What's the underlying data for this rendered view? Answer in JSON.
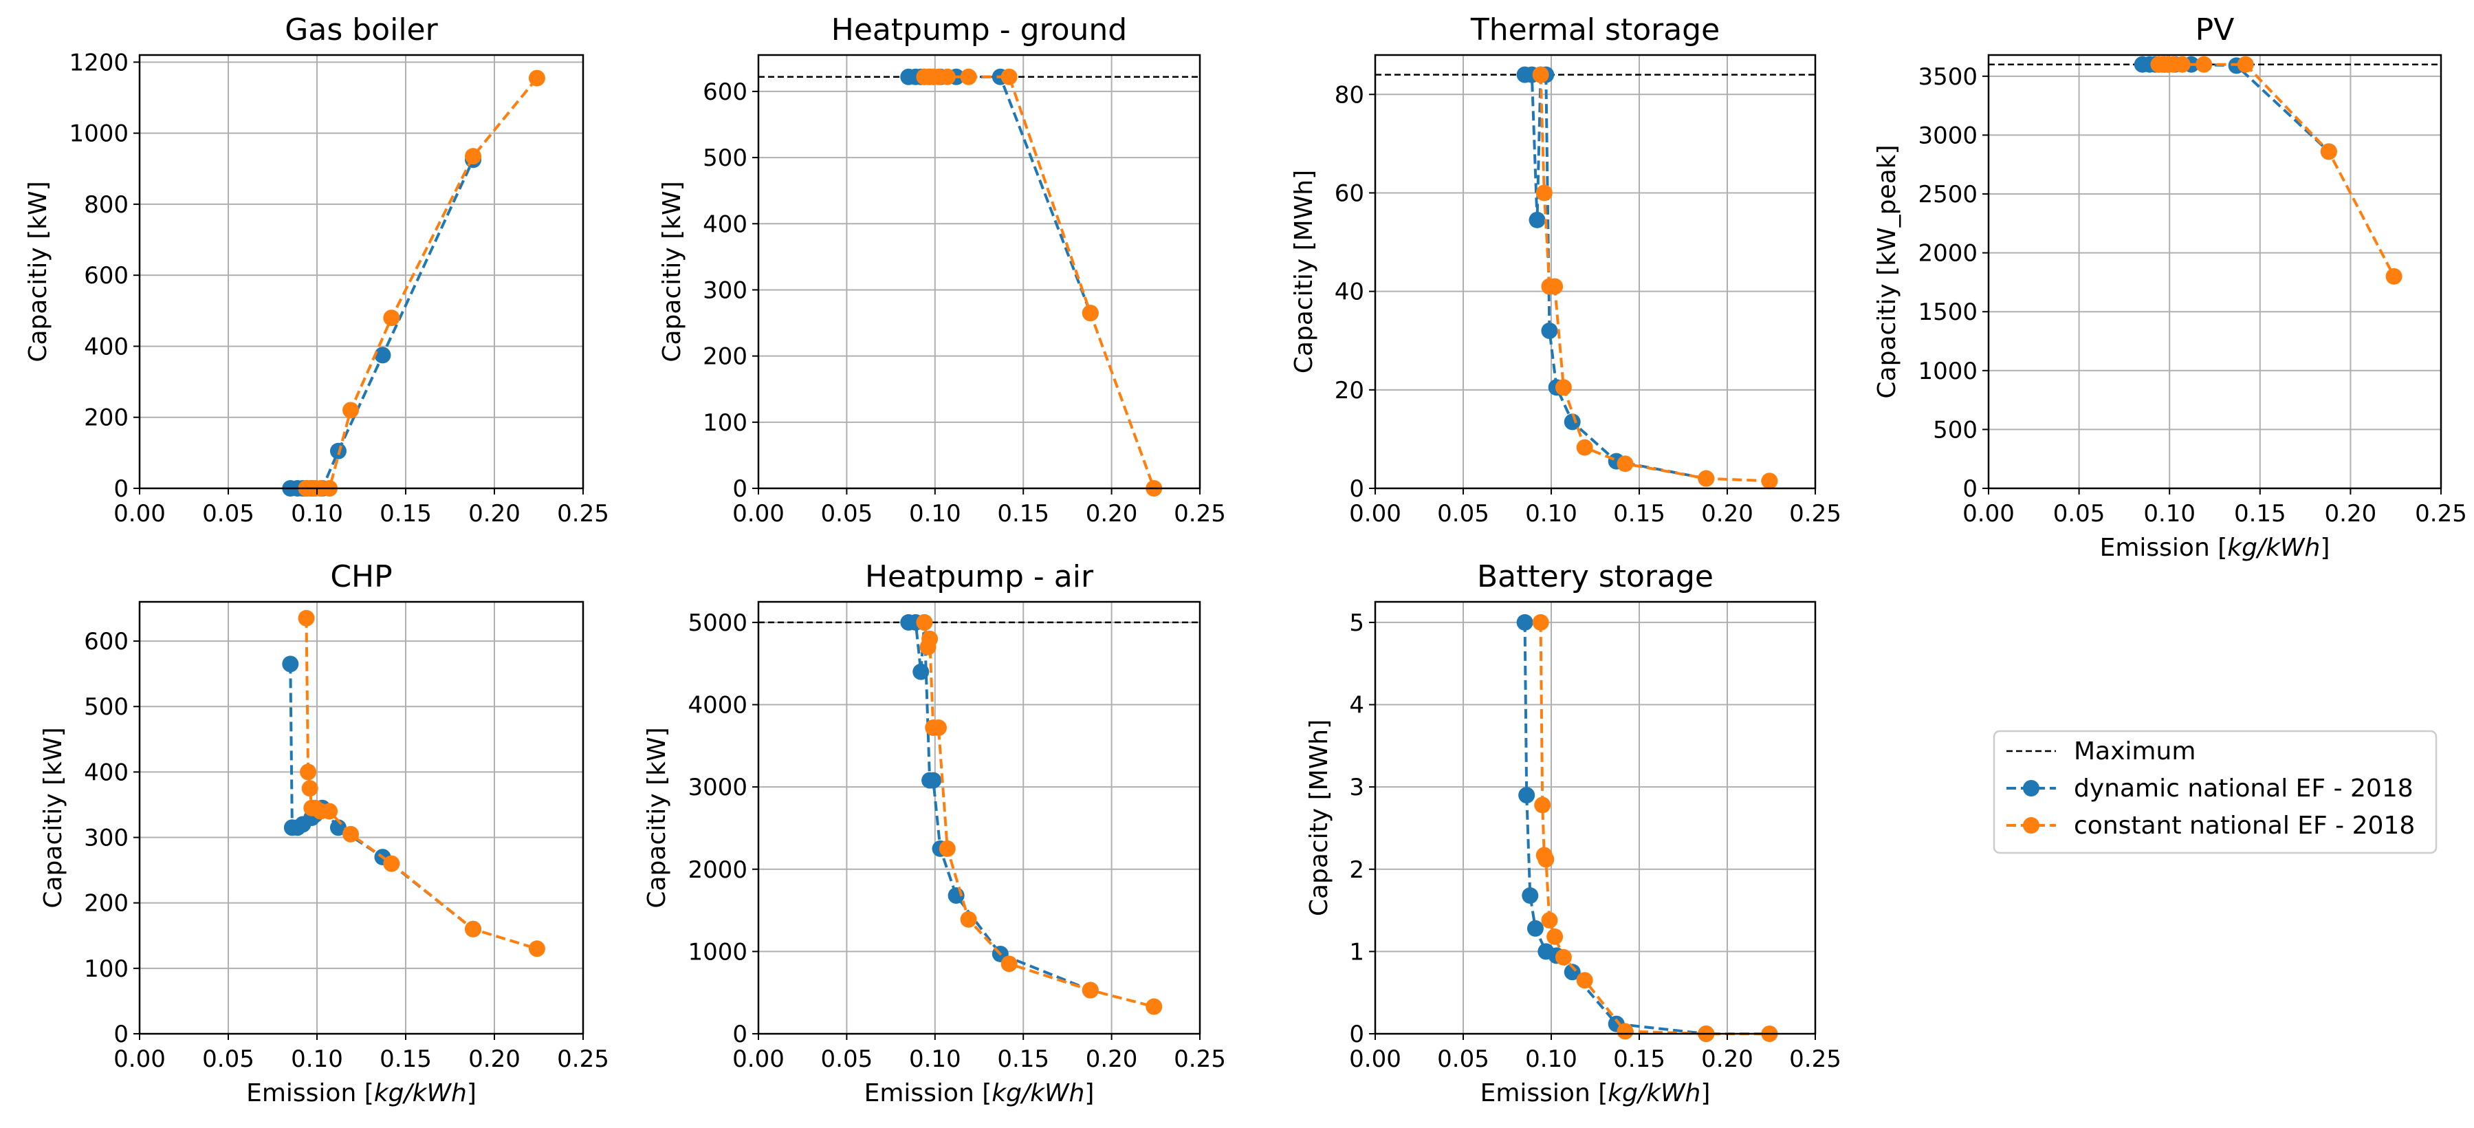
{
  "colors": {
    "dynamic": "#1f77b4",
    "constant": "#ff7f0e",
    "maximum": "#000000",
    "grid": "#b0b0b0"
  },
  "legend": {
    "maximum_label": "Maximum",
    "dynamic_label": "dynamic national EF - 2018",
    "constant_label": "constant national EF - 2018"
  },
  "chart_data": [
    {
      "type": "line",
      "title": "Gas boiler",
      "xlabel": "",
      "ylabel": "Capacitiy [kW]",
      "xlim": [
        0,
        0.25
      ],
      "ylim": [
        0,
        1220
      ],
      "xticks": [
        0,
        0.05,
        0.1,
        0.15,
        0.2,
        0.25
      ],
      "xtick_labels": [
        "0.00",
        "0.05",
        "0.10",
        "0.15",
        "0.20",
        "0.25"
      ],
      "yticks": [
        0,
        200,
        400,
        600,
        800,
        1000,
        1200
      ],
      "ytick_labels": [
        "0",
        "200",
        "400",
        "600",
        "800",
        "1000",
        "1200"
      ],
      "maximum": null,
      "series": [
        {
          "name": "dynamic national EF - 2018",
          "x": [
            0.085,
            0.089,
            0.092,
            0.094,
            0.097,
            0.099,
            0.103,
            0.112,
            0.137,
            0.188
          ],
          "y": [
            0,
            0,
            0,
            0,
            0,
            0,
            0,
            105,
            375,
            925
          ]
        },
        {
          "name": "constant national EF - 2018",
          "x": [
            0.094,
            0.096,
            0.099,
            0.102,
            0.107,
            0.119,
            0.142,
            0.188,
            0.224
          ],
          "y": [
            0,
            0,
            0,
            0,
            0,
            220,
            480,
            935,
            1155
          ]
        }
      ]
    },
    {
      "type": "line",
      "title": "Heatpump - ground",
      "xlabel": "",
      "ylabel": "Capacitiy [kW]",
      "xlim": [
        0,
        0.25
      ],
      "ylim": [
        0,
        655
      ],
      "xticks": [
        0,
        0.05,
        0.1,
        0.15,
        0.2,
        0.25
      ],
      "xtick_labels": [
        "0.00",
        "0.05",
        "0.10",
        "0.15",
        "0.20",
        "0.25"
      ],
      "yticks": [
        0,
        100,
        200,
        300,
        400,
        500,
        600
      ],
      "ytick_labels": [
        "0",
        "100",
        "200",
        "300",
        "400",
        "500",
        "600"
      ],
      "maximum": 622,
      "series": [
        {
          "name": "dynamic national EF - 2018",
          "x": [
            0.085,
            0.089,
            0.092,
            0.094,
            0.097,
            0.099,
            0.103,
            0.112,
            0.137,
            0.188
          ],
          "y": [
            622,
            622,
            622,
            622,
            622,
            622,
            622,
            622,
            622,
            265
          ]
        },
        {
          "name": "constant national EF - 2018",
          "x": [
            0.094,
            0.096,
            0.099,
            0.102,
            0.107,
            0.119,
            0.142,
            0.188,
            0.224
          ],
          "y": [
            622,
            622,
            622,
            622,
            622,
            622,
            622,
            265,
            0
          ]
        }
      ]
    },
    {
      "type": "line",
      "title": "Thermal storage",
      "xlabel": "",
      "ylabel": "Capacitiy [MWh]",
      "xlim": [
        0,
        0.25
      ],
      "ylim": [
        0,
        88
      ],
      "xticks": [
        0,
        0.05,
        0.1,
        0.15,
        0.2,
        0.25
      ],
      "xtick_labels": [
        "0.00",
        "0.05",
        "0.10",
        "0.15",
        "0.20",
        "0.25"
      ],
      "yticks": [
        0,
        20,
        40,
        60,
        80
      ],
      "ytick_labels": [
        "0",
        "20",
        "40",
        "60",
        "80"
      ],
      "maximum": 84,
      "series": [
        {
          "name": "dynamic national EF - 2018",
          "x": [
            0.085,
            0.089,
            0.092,
            0.094,
            0.097,
            0.099,
            0.103,
            0.112,
            0.137,
            0.188
          ],
          "y": [
            84,
            84,
            54.5,
            84,
            84,
            32,
            20.5,
            13.5,
            5.5,
            2.0
          ]
        },
        {
          "name": "constant national EF - 2018",
          "x": [
            0.094,
            0.096,
            0.099,
            0.102,
            0.107,
            0.119,
            0.142,
            0.188,
            0.224
          ],
          "y": [
            84,
            60,
            41,
            41,
            20.5,
            8.3,
            5.0,
            2.0,
            1.5
          ]
        }
      ]
    },
    {
      "type": "line",
      "title": "PV",
      "xlabel": "Emission [kg/kWh]",
      "ylabel": "Capacitiy [kW_peak]",
      "xlim": [
        0,
        0.25
      ],
      "ylim": [
        0,
        3680
      ],
      "xticks": [
        0,
        0.05,
        0.1,
        0.15,
        0.2,
        0.25
      ],
      "xtick_labels": [
        "0.00",
        "0.05",
        "0.10",
        "0.15",
        "0.20",
        "0.25"
      ],
      "yticks": [
        0,
        500,
        1000,
        1500,
        2000,
        2500,
        3000,
        3500
      ],
      "ytick_labels": [
        "0",
        "500",
        "1000",
        "1500",
        "2000",
        "2500",
        "3000",
        "3500"
      ],
      "maximum": 3600,
      "series": [
        {
          "name": "dynamic national EF - 2018",
          "x": [
            0.085,
            0.089,
            0.092,
            0.094,
            0.097,
            0.099,
            0.103,
            0.112,
            0.137,
            0.188
          ],
          "y": [
            3600,
            3600,
            3600,
            3600,
            3600,
            3600,
            3600,
            3600,
            3590,
            2860
          ]
        },
        {
          "name": "constant national EF - 2018",
          "x": [
            0.094,
            0.096,
            0.099,
            0.102,
            0.107,
            0.119,
            0.142,
            0.188,
            0.224
          ],
          "y": [
            3600,
            3600,
            3600,
            3600,
            3600,
            3600,
            3600,
            2860,
            1800
          ]
        }
      ]
    },
    {
      "type": "line",
      "title": "CHP",
      "xlabel": "Emission [kg/kWh]",
      "ylabel": "Capacitiy [kW]",
      "xlim": [
        0,
        0.25
      ],
      "ylim": [
        0,
        660
      ],
      "xticks": [
        0,
        0.05,
        0.1,
        0.15,
        0.2,
        0.25
      ],
      "xtick_labels": [
        "0.00",
        "0.05",
        "0.10",
        "0.15",
        "0.20",
        "0.25"
      ],
      "yticks": [
        0,
        100,
        200,
        300,
        400,
        500,
        600
      ],
      "ytick_labels": [
        "0",
        "100",
        "200",
        "300",
        "400",
        "500",
        "600"
      ],
      "maximum": null,
      "series": [
        {
          "name": "dynamic national EF - 2018",
          "x": [
            0.085,
            0.086,
            0.089,
            0.092,
            0.097,
            0.099,
            0.103,
            0.112,
            0.137,
            0.188
          ],
          "y": [
            565,
            315,
            315,
            320,
            330,
            335,
            345,
            315,
            270,
            160
          ]
        },
        {
          "name": "constant national EF - 2018",
          "x": [
            0.094,
            0.095,
            0.096,
            0.097,
            0.099,
            0.102,
            0.107,
            0.119,
            0.142,
            0.188,
            0.224
          ],
          "y": [
            635,
            400,
            375,
            345,
            345,
            340,
            340,
            305,
            260,
            160,
            130
          ]
        }
      ]
    },
    {
      "type": "line",
      "title": "Heatpump - air",
      "xlabel": "Emission [kg/kWh]",
      "ylabel": "Capacitiy [kW]",
      "xlim": [
        0,
        0.25
      ],
      "ylim": [
        0,
        5250
      ],
      "xticks": [
        0,
        0.05,
        0.1,
        0.15,
        0.2,
        0.25
      ],
      "xtick_labels": [
        "0.00",
        "0.05",
        "0.10",
        "0.15",
        "0.20",
        "0.25"
      ],
      "yticks": [
        0,
        1000,
        2000,
        3000,
        4000,
        5000
      ],
      "ytick_labels": [
        "0",
        "1000",
        "2000",
        "3000",
        "4000",
        "5000"
      ],
      "maximum": 5000,
      "series": [
        {
          "name": "dynamic national EF - 2018",
          "x": [
            0.085,
            0.089,
            0.092,
            0.094,
            0.097,
            0.099,
            0.103,
            0.112,
            0.137,
            0.188
          ],
          "y": [
            5000,
            5000,
            4400,
            5000,
            3080,
            3080,
            2250,
            1680,
            970,
            530
          ]
        },
        {
          "name": "constant national EF - 2018",
          "x": [
            0.094,
            0.096,
            0.097,
            0.099,
            0.102,
            0.107,
            0.119,
            0.142,
            0.188,
            0.224
          ],
          "y": [
            5000,
            4700,
            4800,
            3720,
            3720,
            2250,
            1390,
            850,
            530,
            330
          ]
        }
      ]
    },
    {
      "type": "line",
      "title": "Battery storage",
      "xlabel": "Emission [kg/kWh]",
      "ylabel": "Capacity [MWh]",
      "xlim": [
        0,
        0.25
      ],
      "ylim": [
        0,
        5.25
      ],
      "xticks": [
        0,
        0.05,
        0.1,
        0.15,
        0.2,
        0.25
      ],
      "xtick_labels": [
        "0.00",
        "0.05",
        "0.10",
        "0.15",
        "0.20",
        "0.25"
      ],
      "yticks": [
        0,
        1,
        2,
        3,
        4,
        5
      ],
      "ytick_labels": [
        "0",
        "1",
        "2",
        "3",
        "4",
        "5"
      ],
      "maximum": null,
      "series": [
        {
          "name": "dynamic national EF - 2018",
          "x": [
            0.085,
            0.086,
            0.088,
            0.091,
            0.097,
            0.103,
            0.112,
            0.137,
            0.188
          ],
          "y": [
            5.0,
            2.9,
            1.68,
            1.28,
            1.0,
            0.95,
            0.75,
            0.12,
            0.0
          ]
        },
        {
          "name": "constant national EF - 2018",
          "x": [
            0.094,
            0.095,
            0.096,
            0.097,
            0.099,
            0.102,
            0.107,
            0.119,
            0.142,
            0.188,
            0.224
          ],
          "y": [
            5.0,
            2.78,
            2.17,
            2.12,
            1.38,
            1.18,
            0.93,
            0.65,
            0.03,
            0.0,
            0.0
          ]
        }
      ]
    }
  ]
}
